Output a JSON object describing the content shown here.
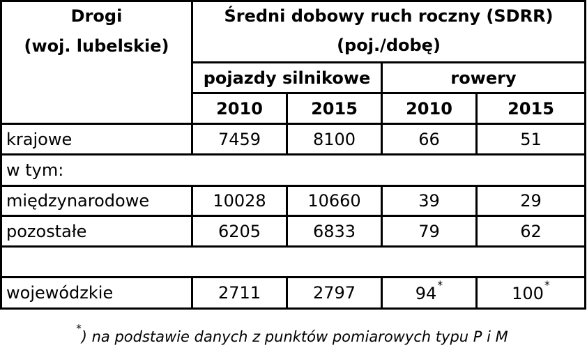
{
  "header": {
    "roads_label_line1": "Drogi",
    "roads_label_line2": "(woj. lubelskie)",
    "sdrr_title_line1": "Średni dobowy ruch roczny (SDRR)",
    "sdrr_title_line2": "(poj./dobę)",
    "group_motor": "pojazdy silnikowe",
    "group_bikes": "rowery",
    "years": [
      "2010",
      "2015",
      "2010",
      "2015"
    ]
  },
  "rows": [
    {
      "label": "krajowe",
      "values": [
        "7459",
        "8100",
        "66",
        "51"
      ]
    },
    {
      "label": "w tym:"
    },
    {
      "label": "międzynarodowe",
      "values": [
        "10028",
        "10660",
        "39",
        "29"
      ]
    },
    {
      "label": "pozostałe",
      "values": [
        "6205",
        "6833",
        "79",
        "62"
      ]
    },
    {
      "label": ""
    },
    {
      "label": "wojewódzkie",
      "values": [
        "2711",
        "2797",
        "94",
        "100"
      ],
      "star": "*"
    }
  ],
  "footnote": {
    "marker": "*",
    "paren": ")",
    "text": "na podstawie danych z punktów pomiarowych typu P i M"
  }
}
